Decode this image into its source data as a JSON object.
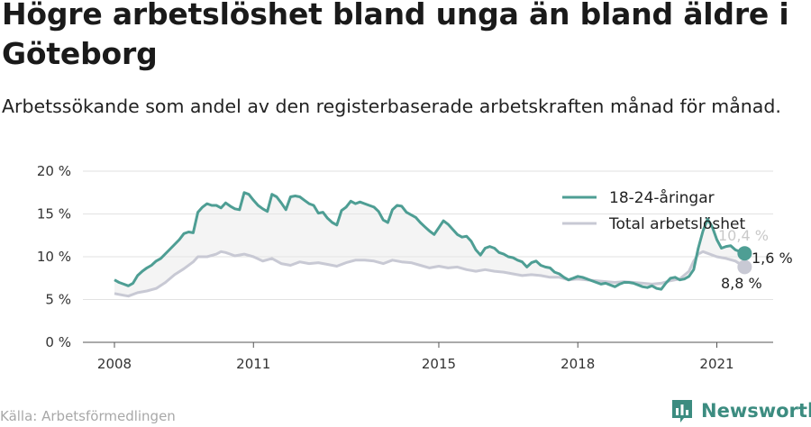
{
  "title": "Högre arbetslöshet bland unga än bland äldre i Göteborg",
  "subtitle": "Arbetssökande som andel av den registerbaserade arbetskraften månad för månad.",
  "source": "Källa: Arbetsförmedlingen",
  "brand": "Newsworthy",
  "colors": {
    "youth": "#4e9e94",
    "total": "#c8c9d4",
    "band": "#e6e6e6",
    "brand": "#3c8c80"
  },
  "chart_data": {
    "type": "line",
    "title": "",
    "xlabel": "",
    "ylabel": "",
    "xlim": [
      2008,
      2021.75
    ],
    "ylim": [
      0,
      20
    ],
    "x_ticks": [
      2008,
      2011,
      2015,
      2018,
      2021
    ],
    "x_tick_labels": [
      "2008",
      "2011",
      "2015",
      "2018",
      "2021"
    ],
    "y_ticks": [
      0,
      5,
      10,
      15,
      20
    ],
    "y_tick_labels": [
      "0 %",
      "5 %",
      "10 %",
      "15 %",
      "20 %"
    ],
    "grid": "horizontal",
    "legend_position": "top-right",
    "series": [
      {
        "name": "18-24-åringar",
        "end_label": "10,4 %",
        "end_label_extra": "1,6 %",
        "points": [
          [
            2008.0,
            7.3
          ],
          [
            2008.1,
            7.0
          ],
          [
            2008.2,
            6.8
          ],
          [
            2008.3,
            6.6
          ],
          [
            2008.4,
            6.9
          ],
          [
            2008.5,
            7.8
          ],
          [
            2008.6,
            8.3
          ],
          [
            2008.7,
            8.7
          ],
          [
            2008.8,
            9.0
          ],
          [
            2008.9,
            9.5
          ],
          [
            2009.0,
            9.8
          ],
          [
            2009.2,
            10.9
          ],
          [
            2009.4,
            12.0
          ],
          [
            2009.5,
            12.7
          ],
          [
            2009.6,
            12.9
          ],
          [
            2009.7,
            12.8
          ],
          [
            2009.8,
            15.2
          ],
          [
            2009.9,
            15.8
          ],
          [
            2010.0,
            16.2
          ],
          [
            2010.1,
            16.0
          ],
          [
            2010.2,
            16.0
          ],
          [
            2010.3,
            15.7
          ],
          [
            2010.4,
            16.3
          ],
          [
            2010.5,
            15.9
          ],
          [
            2010.6,
            15.6
          ],
          [
            2010.7,
            15.5
          ],
          [
            2010.8,
            17.5
          ],
          [
            2010.9,
            17.3
          ],
          [
            2011.0,
            16.6
          ],
          [
            2011.1,
            16.0
          ],
          [
            2011.2,
            15.6
          ],
          [
            2011.3,
            15.3
          ],
          [
            2011.4,
            17.3
          ],
          [
            2011.5,
            17.0
          ],
          [
            2011.6,
            16.3
          ],
          [
            2011.7,
            15.5
          ],
          [
            2011.8,
            17.0
          ],
          [
            2011.9,
            17.1
          ],
          [
            2012.0,
            17.0
          ],
          [
            2012.1,
            16.6
          ],
          [
            2012.2,
            16.2
          ],
          [
            2012.3,
            16.0
          ],
          [
            2012.4,
            15.1
          ],
          [
            2012.5,
            15.2
          ],
          [
            2012.6,
            14.5
          ],
          [
            2012.7,
            14.0
          ],
          [
            2012.8,
            13.7
          ],
          [
            2012.9,
            15.4
          ],
          [
            2013.0,
            15.8
          ],
          [
            2013.1,
            16.5
          ],
          [
            2013.2,
            16.2
          ],
          [
            2013.3,
            16.4
          ],
          [
            2013.4,
            16.2
          ],
          [
            2013.5,
            16.0
          ],
          [
            2013.6,
            15.8
          ],
          [
            2013.7,
            15.3
          ],
          [
            2013.8,
            14.3
          ],
          [
            2013.9,
            14.0
          ],
          [
            2014.0,
            15.5
          ],
          [
            2014.1,
            16.0
          ],
          [
            2014.2,
            15.9
          ],
          [
            2014.3,
            15.2
          ],
          [
            2014.4,
            14.9
          ],
          [
            2014.5,
            14.6
          ],
          [
            2014.6,
            14.0
          ],
          [
            2014.7,
            13.5
          ],
          [
            2014.8,
            13.0
          ],
          [
            2014.9,
            12.6
          ],
          [
            2015.0,
            13.4
          ],
          [
            2015.1,
            14.2
          ],
          [
            2015.2,
            13.8
          ],
          [
            2015.3,
            13.2
          ],
          [
            2015.4,
            12.6
          ],
          [
            2015.5,
            12.3
          ],
          [
            2015.6,
            12.4
          ],
          [
            2015.7,
            11.8
          ],
          [
            2015.8,
            10.8
          ],
          [
            2015.9,
            10.2
          ],
          [
            2016.0,
            11.0
          ],
          [
            2016.1,
            11.2
          ],
          [
            2016.2,
            11.0
          ],
          [
            2016.3,
            10.5
          ],
          [
            2016.4,
            10.3
          ],
          [
            2016.5,
            10.0
          ],
          [
            2016.6,
            9.9
          ],
          [
            2016.7,
            9.6
          ],
          [
            2016.8,
            9.4
          ],
          [
            2016.9,
            8.8
          ],
          [
            2017.0,
            9.3
          ],
          [
            2017.1,
            9.5
          ],
          [
            2017.2,
            9.0
          ],
          [
            2017.3,
            8.8
          ],
          [
            2017.4,
            8.7
          ],
          [
            2017.5,
            8.2
          ],
          [
            2017.6,
            8.0
          ],
          [
            2017.7,
            7.6
          ],
          [
            2017.8,
            7.3
          ],
          [
            2017.9,
            7.5
          ],
          [
            2018.0,
            7.7
          ],
          [
            2018.1,
            7.6
          ],
          [
            2018.2,
            7.4
          ],
          [
            2018.3,
            7.2
          ],
          [
            2018.4,
            7.0
          ],
          [
            2018.5,
            6.8
          ],
          [
            2018.6,
            6.9
          ],
          [
            2018.7,
            6.7
          ],
          [
            2018.8,
            6.5
          ],
          [
            2018.9,
            6.8
          ],
          [
            2019.0,
            7.0
          ],
          [
            2019.1,
            7.0
          ],
          [
            2019.2,
            6.9
          ],
          [
            2019.3,
            6.7
          ],
          [
            2019.4,
            6.5
          ],
          [
            2019.5,
            6.4
          ],
          [
            2019.6,
            6.6
          ],
          [
            2019.7,
            6.3
          ],
          [
            2019.8,
            6.2
          ],
          [
            2019.9,
            6.9
          ],
          [
            2020.0,
            7.5
          ],
          [
            2020.1,
            7.6
          ],
          [
            2020.2,
            7.3
          ],
          [
            2020.3,
            7.4
          ],
          [
            2020.4,
            7.7
          ],
          [
            2020.5,
            8.5
          ],
          [
            2020.6,
            11.0
          ],
          [
            2020.7,
            13.0
          ],
          [
            2020.8,
            14.4
          ],
          [
            2020.9,
            13.5
          ],
          [
            2021.0,
            12.0
          ],
          [
            2021.1,
            11.0
          ],
          [
            2021.2,
            11.2
          ],
          [
            2021.3,
            11.3
          ],
          [
            2021.4,
            10.8
          ],
          [
            2021.5,
            10.6
          ],
          [
            2021.6,
            10.4
          ]
        ]
      },
      {
        "name": "Total arbetslöshet",
        "end_label": "8,8 %",
        "points": [
          [
            2008.0,
            5.7
          ],
          [
            2008.2,
            5.5
          ],
          [
            2008.3,
            5.4
          ],
          [
            2008.5,
            5.8
          ],
          [
            2008.7,
            6.0
          ],
          [
            2008.9,
            6.3
          ],
          [
            2009.1,
            7.0
          ],
          [
            2009.3,
            7.9
          ],
          [
            2009.5,
            8.6
          ],
          [
            2009.7,
            9.4
          ],
          [
            2009.8,
            10.0
          ],
          [
            2009.9,
            10.0
          ],
          [
            2010.0,
            10.0
          ],
          [
            2010.2,
            10.3
          ],
          [
            2010.3,
            10.6
          ],
          [
            2010.4,
            10.5
          ],
          [
            2010.6,
            10.1
          ],
          [
            2010.8,
            10.3
          ],
          [
            2011.0,
            10.0
          ],
          [
            2011.2,
            9.5
          ],
          [
            2011.4,
            9.8
          ],
          [
            2011.6,
            9.2
          ],
          [
            2011.8,
            9.0
          ],
          [
            2012.0,
            9.4
          ],
          [
            2012.2,
            9.2
          ],
          [
            2012.4,
            9.3
          ],
          [
            2012.6,
            9.1
          ],
          [
            2012.8,
            8.9
          ],
          [
            2013.0,
            9.3
          ],
          [
            2013.2,
            9.6
          ],
          [
            2013.4,
            9.6
          ],
          [
            2013.6,
            9.5
          ],
          [
            2013.8,
            9.2
          ],
          [
            2014.0,
            9.6
          ],
          [
            2014.2,
            9.4
          ],
          [
            2014.4,
            9.3
          ],
          [
            2014.6,
            9.0
          ],
          [
            2014.8,
            8.7
          ],
          [
            2015.0,
            8.9
          ],
          [
            2015.2,
            8.7
          ],
          [
            2015.4,
            8.8
          ],
          [
            2015.6,
            8.5
          ],
          [
            2015.8,
            8.3
          ],
          [
            2016.0,
            8.5
          ],
          [
            2016.2,
            8.3
          ],
          [
            2016.4,
            8.2
          ],
          [
            2016.6,
            8.0
          ],
          [
            2016.8,
            7.8
          ],
          [
            2017.0,
            7.9
          ],
          [
            2017.2,
            7.8
          ],
          [
            2017.4,
            7.6
          ],
          [
            2017.6,
            7.6
          ],
          [
            2017.8,
            7.3
          ],
          [
            2018.0,
            7.4
          ],
          [
            2018.2,
            7.3
          ],
          [
            2018.4,
            7.2
          ],
          [
            2018.6,
            7.1
          ],
          [
            2018.8,
            7.0
          ],
          [
            2019.0,
            7.1
          ],
          [
            2019.2,
            7.0
          ],
          [
            2019.4,
            6.9
          ],
          [
            2019.6,
            6.8
          ],
          [
            2019.8,
            6.9
          ],
          [
            2020.0,
            7.2
          ],
          [
            2020.2,
            7.4
          ],
          [
            2020.4,
            8.3
          ],
          [
            2020.5,
            9.5
          ],
          [
            2020.6,
            10.3
          ],
          [
            2020.7,
            10.6
          ],
          [
            2020.8,
            10.4
          ],
          [
            2021.0,
            10.0
          ],
          [
            2021.2,
            9.8
          ],
          [
            2021.4,
            9.5
          ],
          [
            2021.6,
            8.8
          ]
        ]
      }
    ]
  }
}
